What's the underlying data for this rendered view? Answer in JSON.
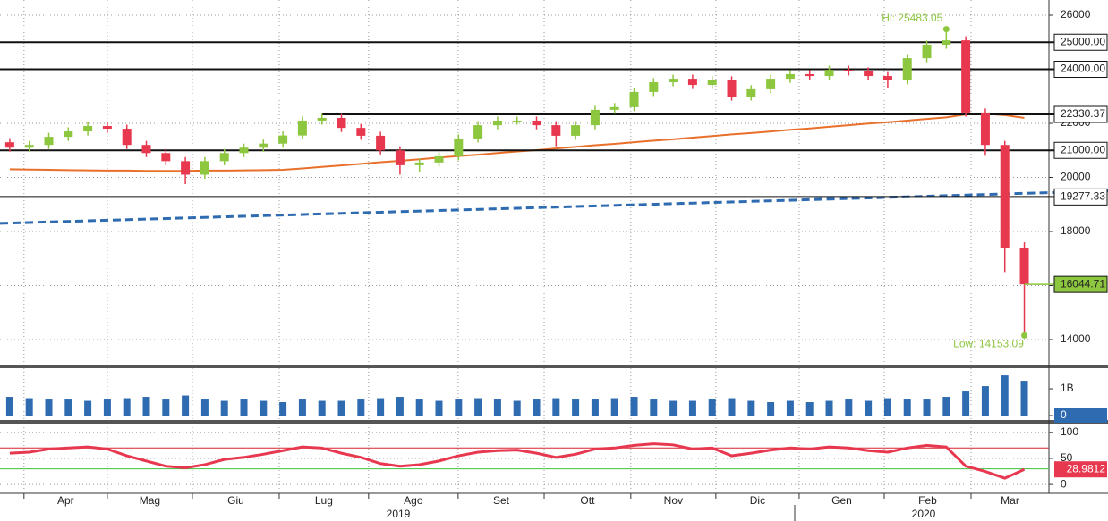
{
  "chart_data": {
    "type": "candlestick",
    "xlim": [
      -0.5,
      53.26
    ],
    "xticks": [
      {
        "value": 0.73,
        "label": "Apr"
      },
      {
        "value": 5.0,
        "label": "Mag"
      },
      {
        "value": 9.36,
        "label": "Giu"
      },
      {
        "value": 13.81,
        "label": "Lug"
      },
      {
        "value": 18.39,
        "label": "Ago"
      },
      {
        "value": 22.98,
        "label": "Set"
      },
      {
        "value": 27.39,
        "label": "Ott"
      },
      {
        "value": 31.83,
        "label": "Nov"
      },
      {
        "value": 36.19,
        "label": "Dic"
      },
      {
        "value": 40.46,
        "label": "Gen"
      },
      {
        "value": 44.82,
        "label": "Feb"
      },
      {
        "value": 49.27,
        "label": "Mar"
      }
    ],
    "years": [
      "2019",
      "2020"
    ],
    "grid": true,
    "price": {
      "ylim": [
        13074,
        26562
      ],
      "yticks": [
        14000,
        16000,
        18000,
        20000,
        22000,
        24000,
        26000
      ],
      "up_color": "#8dc63f",
      "down_color": "#e8384f",
      "open": [
        21300,
        21100,
        21200,
        21500,
        21700,
        21900,
        21800,
        21200,
        20900,
        20600,
        20100,
        20600,
        20900,
        21100,
        21250,
        21550,
        22100,
        22200,
        21830,
        21540,
        21000,
        20450,
        20550,
        20780,
        21440,
        21930,
        22100,
        22100,
        21930,
        21540,
        21930,
        22500,
        22600,
        23160,
        23520,
        23650,
        23420,
        23590,
        22990,
        23260,
        23650,
        23820,
        23750,
        23980,
        23920,
        23750,
        23590,
        24410,
        24910,
        25070,
        22400,
        21200,
        17400
      ],
      "high": [
        21450,
        21350,
        21650,
        21850,
        22050,
        22050,
        21950,
        21350,
        21050,
        20750,
        20750,
        21050,
        21250,
        21400,
        21700,
        22250,
        22350,
        22350,
        21980,
        21690,
        21150,
        20700,
        20930,
        21590,
        22080,
        22250,
        22250,
        22250,
        22080,
        22080,
        22650,
        22750,
        23310,
        23670,
        23800,
        23800,
        23740,
        23740,
        23410,
        23800,
        23970,
        23970,
        24130,
        24130,
        24070,
        23900,
        24560,
        25060,
        25483.05,
        25220,
        22550,
        21350,
        17600
      ],
      "low": [
        20950,
        20950,
        21050,
        21350,
        21550,
        21650,
        21050,
        20750,
        20450,
        19750,
        19950,
        20450,
        20750,
        20950,
        21100,
        21400,
        21950,
        21680,
        21390,
        20850,
        20100,
        20200,
        20400,
        20630,
        21290,
        21780,
        21950,
        21780,
        21150,
        21390,
        21780,
        22350,
        22450,
        23010,
        23370,
        23270,
        23270,
        22840,
        22840,
        23110,
        23500,
        23600,
        23600,
        23770,
        23600,
        23300,
        23440,
        24260,
        24760,
        22250,
        20800,
        16500,
        14153.09
      ],
      "close": [
        21100,
        21200,
        21500,
        21700,
        21900,
        21800,
        21200,
        20900,
        20600,
        20100,
        20600,
        20900,
        21100,
        21250,
        21550,
        22100,
        22200,
        21830,
        21540,
        21000,
        20450,
        20550,
        20780,
        21440,
        21930,
        22100,
        22100,
        21930,
        21540,
        21930,
        22500,
        22600,
        23160,
        23520,
        23650,
        23420,
        23590,
        22990,
        23260,
        23650,
        23820,
        23750,
        23980,
        23920,
        23750,
        23590,
        24410,
        24910,
        25070,
        22400,
        21200,
        17400,
        16044.71
      ],
      "last_label": "16044.71",
      "moving_average": {
        "color": "#e8702a",
        "values": [
          20300,
          20290,
          20280,
          20270,
          20260,
          20250,
          20250,
          20240,
          20240,
          20240,
          20250,
          20250,
          20260,
          20270,
          20280,
          20330,
          20390,
          20440,
          20500,
          20560,
          20610,
          20670,
          20730,
          20790,
          20840,
          20900,
          20960,
          21010,
          21070,
          21130,
          21190,
          21240,
          21300,
          21360,
          21410,
          21470,
          21530,
          21590,
          21640,
          21700,
          21760,
          21810,
          21870,
          21930,
          21990,
          22040,
          22100,
          22160,
          22220,
          22330,
          22350,
          22300,
          22200
        ]
      },
      "trend": {
        "color": "#2e6bb0",
        "x": [
          -0.5,
          56.29
        ],
        "values": [
          18300,
          19500
        ]
      },
      "levels": [
        {
          "value": 25000,
          "label": "25000.00"
        },
        {
          "value": 24000,
          "label": "24000.00"
        },
        {
          "value": 22330.37,
          "label": "22330.37",
          "x_start": 16.01
        },
        {
          "value": 21000,
          "label": "21000.00"
        },
        {
          "value": 19277.33,
          "label": "19277.33"
        }
      ],
      "annotations": [
        "Hi: 25483.05",
        "Low: 14153.09"
      ]
    },
    "volume": {
      "color": "#2e6bb0",
      "ylim": [
        0,
        1.67
      ],
      "yticks": [
        {
          "value": 0,
          "label": "0"
        },
        {
          "value": 1,
          "label": "1B"
        }
      ],
      "values": [
        0.7,
        0.65,
        0.6,
        0.6,
        0.55,
        0.6,
        0.65,
        0.7,
        0.6,
        0.75,
        0.6,
        0.55,
        0.6,
        0.55,
        0.5,
        0.6,
        0.55,
        0.55,
        0.6,
        0.65,
        0.7,
        0.6,
        0.55,
        0.6,
        0.65,
        0.6,
        0.55,
        0.6,
        0.65,
        0.6,
        0.6,
        0.65,
        0.7,
        0.6,
        0.55,
        0.55,
        0.6,
        0.65,
        0.55,
        0.5,
        0.55,
        0.5,
        0.55,
        0.6,
        0.55,
        0.65,
        0.6,
        0.6,
        0.7,
        0.9,
        1.1,
        1.5,
        1.3
      ]
    },
    "rsi": {
      "color": "#e8384f",
      "ylim": [
        -17,
        110
      ],
      "yticks": [
        0,
        50,
        100
      ],
      "upper": 70,
      "lower": 30,
      "values": [
        60,
        62,
        68,
        70,
        72,
        68,
        55,
        45,
        35,
        32,
        38,
        48,
        52,
        58,
        65,
        72,
        70,
        60,
        52,
        40,
        35,
        38,
        45,
        55,
        62,
        65,
        66,
        60,
        52,
        58,
        68,
        70,
        75,
        78,
        76,
        68,
        70,
        55,
        60,
        66,
        70,
        68,
        72,
        70,
        65,
        62,
        70,
        75,
        72,
        35,
        25,
        12,
        28.9812
      ],
      "last_label": "28.9812"
    }
  }
}
